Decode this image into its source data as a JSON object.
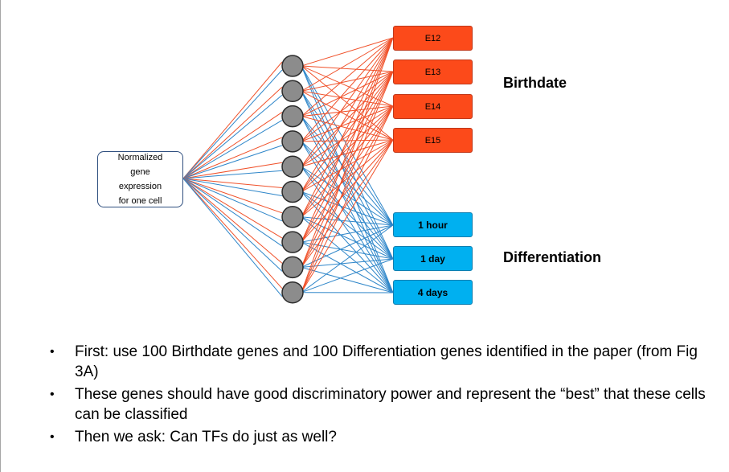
{
  "input": {
    "label": "Normalized\ngene\nexpression\nfor one cell"
  },
  "hidden_nodes": 10,
  "outputs": {
    "birthdate": [
      "E12",
      "E13",
      "E14",
      "E15"
    ],
    "differentiation": [
      "1 hour",
      "1 day",
      "4 days"
    ]
  },
  "labels": {
    "birthdate": "Birthdate",
    "differentiation": "Differentiation"
  },
  "bullets": [
    "First: use 100 Birthdate genes and 100 Differentiation genes identified in the paper (from Fig 3A)",
    "These genes should have good discriminatory power and represent the “best” that these cells can be classified",
    "Then we ask: Can TFs do just as well?"
  ],
  "colors": {
    "red": "#f0512a",
    "blue": "#2e86c9",
    "node": "#8c8c8c"
  }
}
